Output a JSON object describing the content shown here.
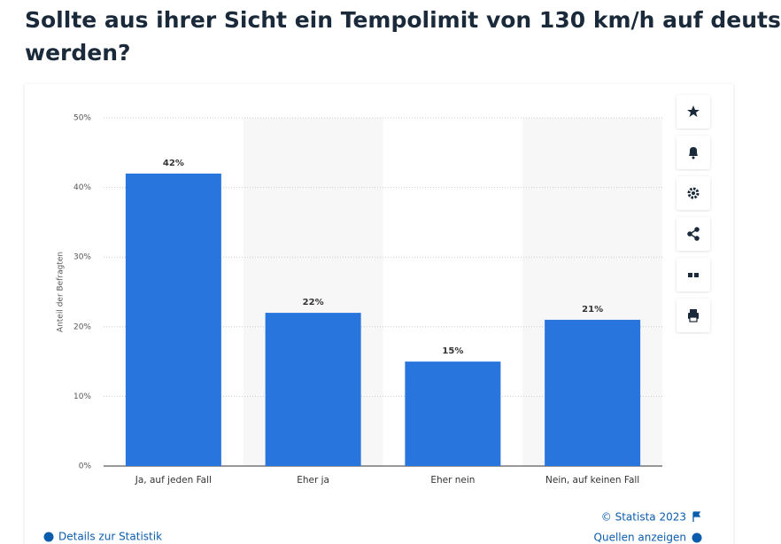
{
  "header": {
    "title": [
      "Sollte aus ihrer Sicht ein Tempolimit von 130 km/h auf deuts",
      "werden?"
    ]
  },
  "chart_data": {
    "type": "bar",
    "categories": [
      "Ja, auf jeden Fall",
      "Eher ja",
      "Eher nein",
      "Nein, auf keinen Fall"
    ],
    "values": [
      42,
      22,
      15,
      21
    ],
    "value_labels": [
      "42%",
      "22%",
      "15%",
      "21%"
    ],
    "color": "#2876dd",
    "y_label": "Anteil der Befragten",
    "ylim": [
      0,
      50
    ],
    "yticks": [
      {
        "value": 0,
        "label": "0%"
      },
      {
        "value": 10,
        "label": "10%"
      },
      {
        "value": 20,
        "label": "20%"
      },
      {
        "value": 30,
        "label": "30%"
      },
      {
        "value": 40,
        "label": "40%"
      },
      {
        "value": 50,
        "label": "50%"
      }
    ],
    "grid": true
  },
  "footer": {
    "copyright": "© Statista 2023",
    "details": "Details zur Statistik",
    "sources": "Quellen anzeigen"
  }
}
